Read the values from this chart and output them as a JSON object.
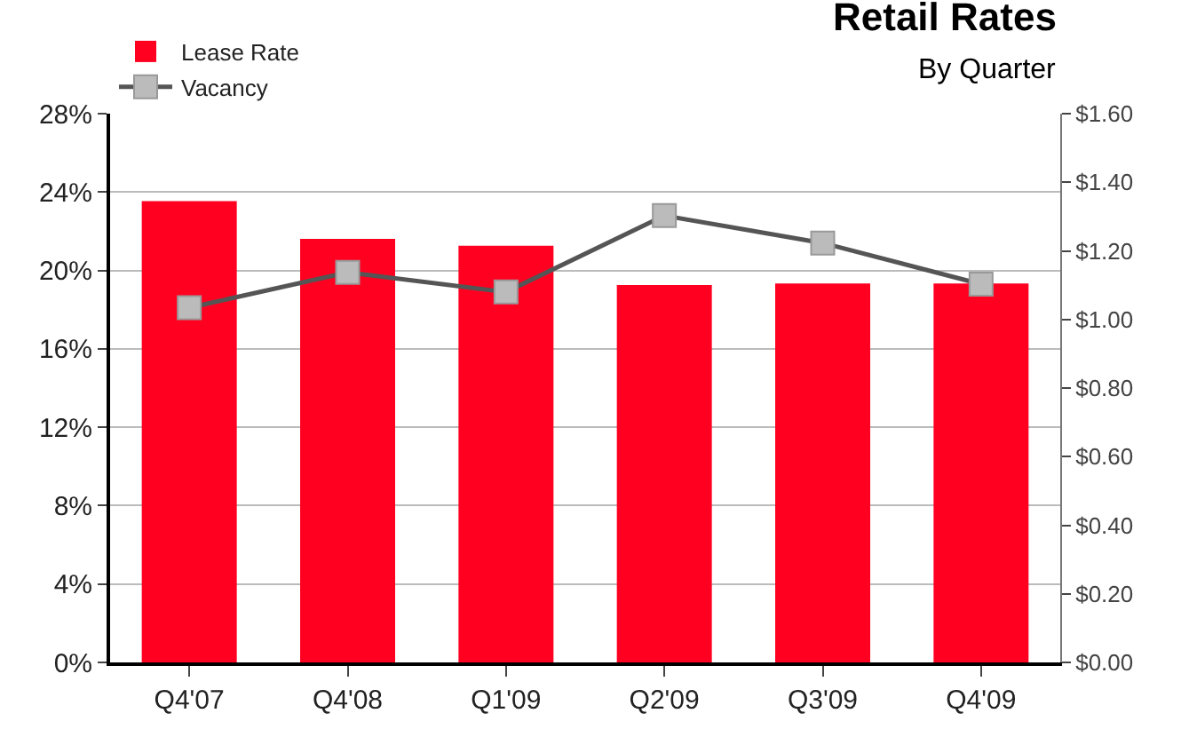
{
  "chart_data": {
    "type": "bar",
    "title": "Retail Rates",
    "subtitle": "By Quarter",
    "categories": [
      "Q4'07",
      "Q4'08",
      "Q1'09",
      "Q2'09",
      "Q3'09",
      "Q4'09"
    ],
    "series": [
      {
        "name": "Lease Rate",
        "axis": "y2",
        "color": "#ff0020",
        "values": [
          1.345,
          1.235,
          1.215,
          1.1,
          1.105,
          1.105
        ]
      },
      {
        "name": "Vacancy",
        "type": "line",
        "axis": "y",
        "color": "#555555",
        "marker": "square",
        "values": [
          18.1,
          19.9,
          18.9,
          22.8,
          21.4,
          19.3
        ]
      }
    ],
    "ylim": [
      0,
      28
    ],
    "yticks": [
      {
        "value": 0,
        "label": "0%"
      },
      {
        "value": 4,
        "label": "4%"
      },
      {
        "value": 8,
        "label": "8%"
      },
      {
        "value": 12,
        "label": "12%"
      },
      {
        "value": 16,
        "label": "16%"
      },
      {
        "value": 20,
        "label": "20%"
      },
      {
        "value": 24,
        "label": "24%"
      },
      {
        "value": 28,
        "label": "28%"
      }
    ],
    "y2lim": [
      0,
      1.6
    ],
    "y2ticks": [
      {
        "value": 0,
        "label": "$0.00"
      },
      {
        "value": 0.2,
        "label": "$0.20"
      },
      {
        "value": 0.4,
        "label": "$0.40"
      },
      {
        "value": 0.6,
        "label": "$0.60"
      },
      {
        "value": 0.8,
        "label": "$0.80"
      },
      {
        "value": 1.0,
        "label": "$1.00"
      },
      {
        "value": 1.2,
        "label": "$1.20"
      },
      {
        "value": 1.4,
        "label": "$1.40"
      },
      {
        "value": 1.6,
        "label": "$1.60"
      }
    ],
    "grid": "y",
    "legend": "top left"
  }
}
